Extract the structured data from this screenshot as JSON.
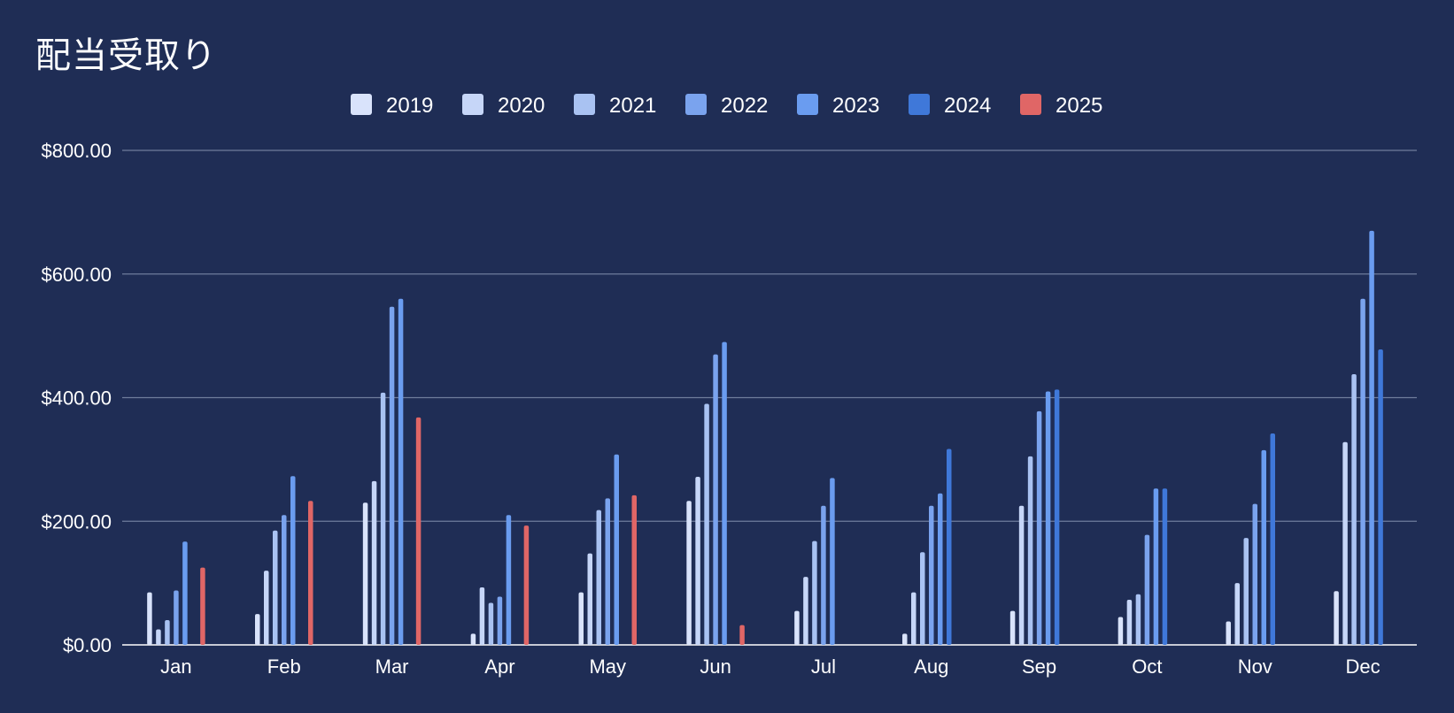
{
  "chart_data": {
    "type": "bar",
    "title": "配当受取り",
    "xlabel": "",
    "ylabel": "",
    "ylim": [
      0,
      800
    ],
    "y_ticks": [
      "$0.00",
      "$200.00",
      "$400.00",
      "$600.00",
      "$800.00"
    ],
    "y_tick_values": [
      0,
      200,
      400,
      600,
      800
    ],
    "grid": true,
    "legend_position": "top",
    "categories": [
      "Jan",
      "Feb",
      "Mar",
      "Apr",
      "May",
      "Jun",
      "Jul",
      "Aug",
      "Sep",
      "Oct",
      "Nov",
      "Dec"
    ],
    "series": [
      {
        "name": "2019",
        "color": "#d9e3fb",
        "values": [
          85,
          50,
          230,
          18,
          85,
          233,
          55,
          18,
          55,
          45,
          38,
          87
        ]
      },
      {
        "name": "2020",
        "color": "#c6d6f8",
        "values": [
          25,
          120,
          265,
          93,
          148,
          272,
          110,
          85,
          225,
          73,
          100,
          328
        ]
      },
      {
        "name": "2021",
        "color": "#a9c2f2",
        "values": [
          40,
          185,
          408,
          68,
          218,
          390,
          168,
          150,
          305,
          82,
          173,
          438
        ]
      },
      {
        "name": "2022",
        "color": "#7aa3ee",
        "values": [
          88,
          210,
          547,
          78,
          237,
          470,
          225,
          225,
          378,
          178,
          228,
          560
        ]
      },
      {
        "name": "2023",
        "color": "#6a9cf0",
        "values": [
          167,
          273,
          560,
          210,
          308,
          490,
          270,
          245,
          410,
          253,
          315,
          670
        ]
      },
      {
        "name": "2024",
        "color": "#3f78d9",
        "values": [
          null,
          null,
          null,
          null,
          null,
          null,
          null,
          317,
          413,
          253,
          342,
          478
        ]
      },
      {
        "name": "2025",
        "color": "#e06666",
        "values": [
          125,
          233,
          368,
          193,
          242,
          32,
          null,
          null,
          null,
          null,
          null,
          null
        ]
      }
    ]
  }
}
